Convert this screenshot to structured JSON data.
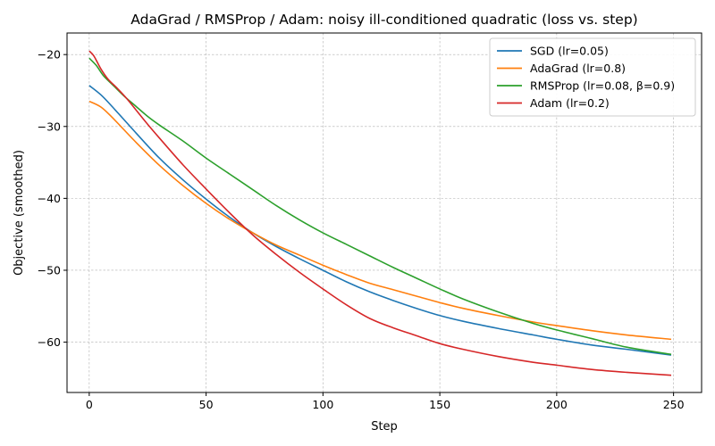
{
  "chart_data": {
    "type": "line",
    "title": "AdaGrad / RMSProp / Adam: noisy ill-conditioned quadratic (loss vs. step)",
    "xlabel": "Step",
    "ylabel": "Objective (smoothed)",
    "xlim": [
      -9.5,
      262
    ],
    "ylim": [
      -67,
      -17
    ],
    "xticks": [
      0,
      50,
      100,
      150,
      200,
      250
    ],
    "yticks": [
      -20,
      -30,
      -40,
      -50,
      -60
    ],
    "grid": true,
    "legend_position": "top-right",
    "series": [
      {
        "name": "SGD (lr=0.05)",
        "color": "#1f77b4",
        "x": [
          0,
          5,
          10,
          20,
          30,
          40,
          50,
          60,
          70,
          80,
          90,
          100,
          110,
          120,
          130,
          140,
          150,
          160,
          175,
          190,
          200,
          215,
          230,
          249
        ],
        "y": [
          -24.3,
          -25.6,
          -27.3,
          -30.9,
          -34.4,
          -37.4,
          -40.1,
          -42.6,
          -44.8,
          -46.7,
          -48.4,
          -50.0,
          -51.6,
          -53.0,
          -54.2,
          -55.3,
          -56.3,
          -57.1,
          -58.1,
          -59.0,
          -59.6,
          -60.4,
          -61.0,
          -61.8
        ]
      },
      {
        "name": "AdaGrad (lr=0.8)",
        "color": "#ff7f0e",
        "x": [
          0,
          5,
          10,
          20,
          30,
          40,
          50,
          60,
          70,
          80,
          90,
          100,
          110,
          120,
          130,
          140,
          150,
          160,
          175,
          190,
          200,
          215,
          230,
          249
        ],
        "y": [
          -26.5,
          -27.3,
          -28.8,
          -32.2,
          -35.4,
          -38.2,
          -40.7,
          -42.9,
          -44.8,
          -46.5,
          -47.9,
          -49.3,
          -50.6,
          -51.8,
          -52.7,
          -53.6,
          -54.5,
          -55.3,
          -56.3,
          -57.2,
          -57.7,
          -58.4,
          -59.0,
          -59.6
        ]
      },
      {
        "name": "RMSProp (lr=0.08, β=0.9)",
        "color": "#2ca02c",
        "x": [
          0,
          3,
          6,
          10,
          15,
          20,
          25,
          30,
          40,
          50,
          60,
          70,
          80,
          90,
          100,
          110,
          120,
          130,
          140,
          150,
          160,
          175,
          190,
          200,
          215,
          230,
          249
        ],
        "y": [
          -20.5,
          -21.5,
          -22.9,
          -24.2,
          -25.8,
          -27.2,
          -28.6,
          -29.8,
          -32.0,
          -34.4,
          -36.6,
          -38.8,
          -41.0,
          -43.0,
          -44.8,
          -46.4,
          -48.0,
          -49.6,
          -51.1,
          -52.6,
          -54.0,
          -55.8,
          -57.4,
          -58.3,
          -59.5,
          -60.7,
          -61.7
        ]
      },
      {
        "name": "Adam (lr=0.2)",
        "color": "#d62728",
        "x": [
          0,
          2,
          5,
          8,
          12,
          16,
          20,
          25,
          30,
          40,
          50,
          60,
          70,
          80,
          90,
          100,
          110,
          120,
          130,
          140,
          150,
          160,
          175,
          190,
          200,
          215,
          230,
          249
        ],
        "y": [
          -19.5,
          -20.2,
          -22.0,
          -23.4,
          -24.7,
          -26.1,
          -27.7,
          -29.7,
          -31.6,
          -35.3,
          -38.7,
          -42.0,
          -45.1,
          -47.8,
          -50.3,
          -52.6,
          -54.8,
          -56.7,
          -58.0,
          -59.1,
          -60.2,
          -61.0,
          -62.0,
          -62.8,
          -63.2,
          -63.8,
          -64.2,
          -64.6
        ]
      }
    ]
  }
}
